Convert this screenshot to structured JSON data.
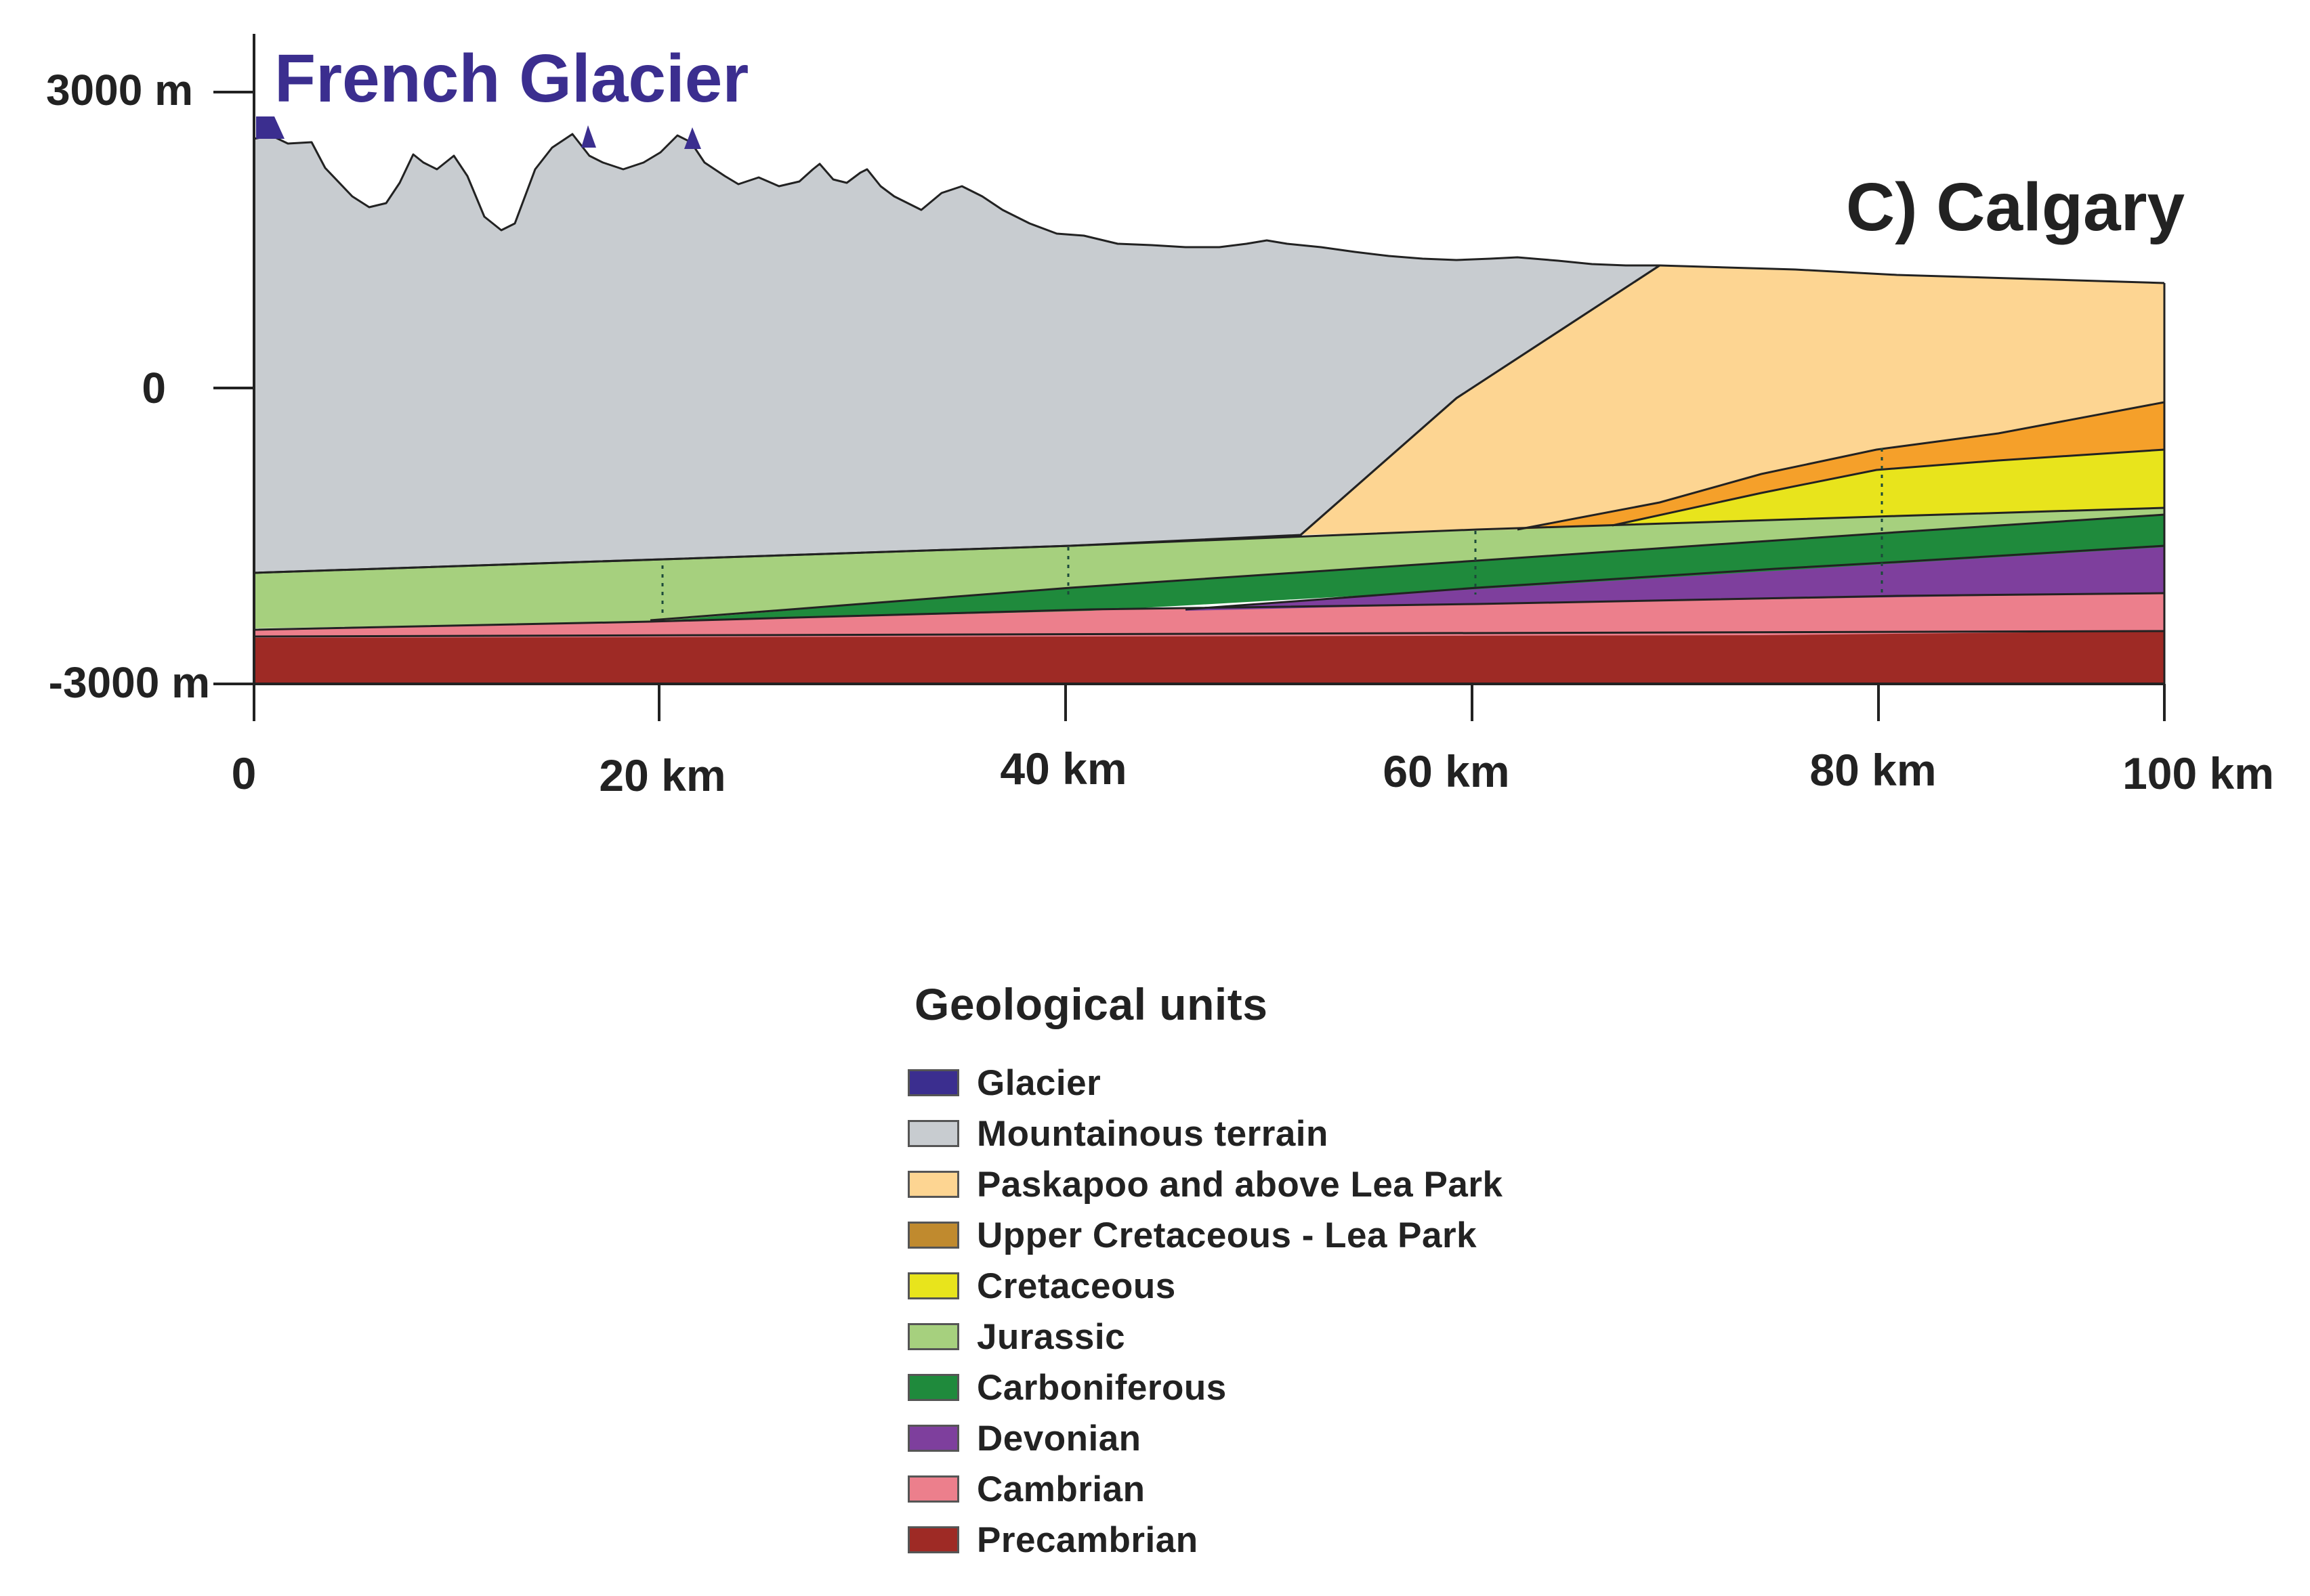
{
  "diagram": {
    "title": "French Glacier",
    "panel_label": "C) Calgary",
    "y_ticks": [
      {
        "label": "3000 m",
        "value": 3000
      },
      {
        "label": "0",
        "value": 0
      },
      {
        "label": "-3000 m",
        "value": -3000
      }
    ],
    "x_ticks": [
      {
        "label": "0",
        "value": 0
      },
      {
        "label": "20 km",
        "value": 20
      },
      {
        "label": "40 km",
        "value": 40
      },
      {
        "label": "60 km",
        "value": 60
      },
      {
        "label": "80 km",
        "value": 80
      },
      {
        "label": "100 km",
        "value": 100
      }
    ]
  },
  "legend": {
    "title": "Geological units",
    "items": [
      {
        "label": "Glacier",
        "color": "#3b2e8f"
      },
      {
        "label": "Mountainous terrain",
        "color": "#c8ccd0"
      },
      {
        "label": "Paskapoo and above Lea Park",
        "color": "#fdd592"
      },
      {
        "label": "Upper Cretaceous - Lea Park",
        "color": "#c08a2e"
      },
      {
        "label": "Cretaceous",
        "color": "#e8e41c"
      },
      {
        "label": "Jurassic",
        "color": "#a6d07e"
      },
      {
        "label": "Carboniferous",
        "color": "#1f8a3c"
      },
      {
        "label": "Devonian",
        "color": "#7e3f9d"
      },
      {
        "label": "Cambrian",
        "color": "#ec7f8c"
      },
      {
        "label": "Precambrian",
        "color": "#9e2a25"
      }
    ]
  },
  "colors": {
    "upper_cretaceous_fill": "#f5a02a",
    "title_color": "#3b2e8f",
    "text_color": "#222222"
  }
}
